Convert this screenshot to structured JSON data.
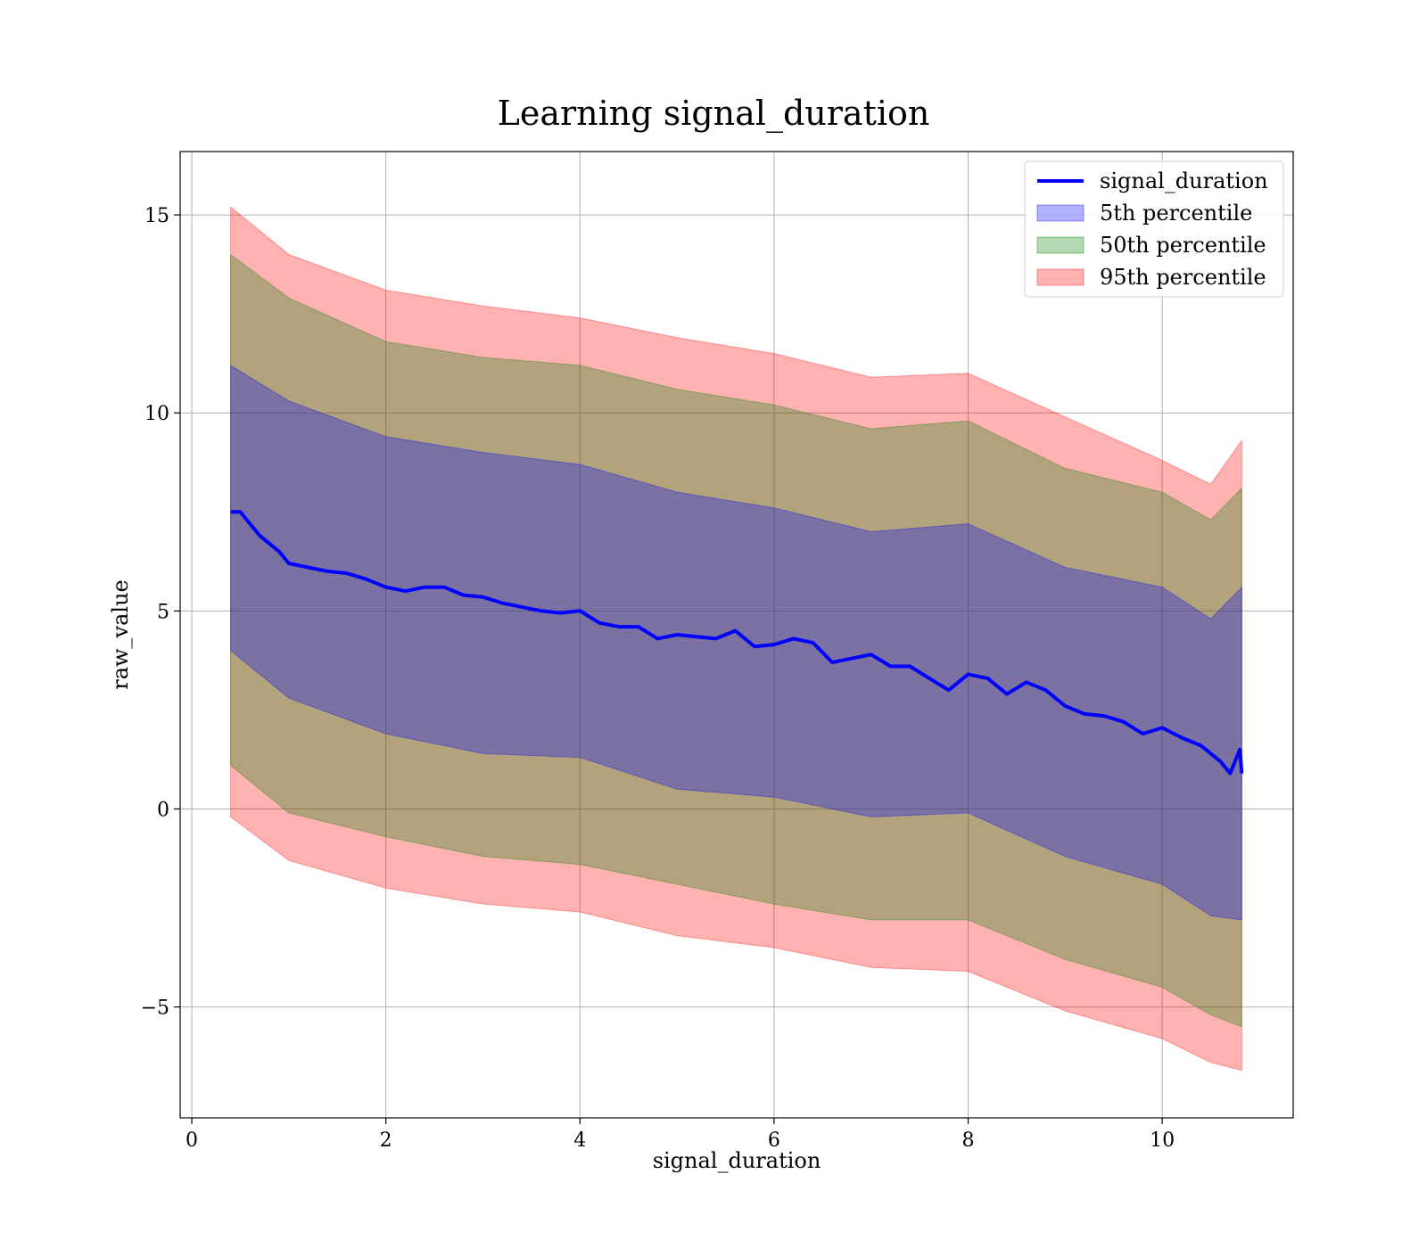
{
  "chart_data": {
    "type": "line",
    "title": "Learning signal_duration",
    "xlabel": "signal_duration",
    "ylabel": "raw_value",
    "xlim": [
      -0.12,
      11.35
    ],
    "ylim": [
      -7.8,
      16.6
    ],
    "x_ticks": [
      {
        "value": 0,
        "label": "0"
      },
      {
        "value": 2,
        "label": "2"
      },
      {
        "value": 4,
        "label": "4"
      },
      {
        "value": 6,
        "label": "6"
      },
      {
        "value": 8,
        "label": "8"
      },
      {
        "value": 10,
        "label": "10"
      }
    ],
    "y_ticks": [
      {
        "value": -5,
        "label": "−5"
      },
      {
        "value": 0,
        "label": "0"
      },
      {
        "value": 5,
        "label": "5"
      },
      {
        "value": 10,
        "label": "10"
      },
      {
        "value": 15,
        "label": "15"
      }
    ],
    "grid": true,
    "legend_position": "top-right",
    "line": {
      "name": "signal_duration",
      "color": "#0000ff",
      "points": [
        [
          0.4,
          7.5
        ],
        [
          0.5,
          7.5
        ],
        [
          0.6,
          7.2
        ],
        [
          0.7,
          6.9
        ],
        [
          0.8,
          6.7
        ],
        [
          0.9,
          6.5
        ],
        [
          1.0,
          6.2
        ],
        [
          1.2,
          6.1
        ],
        [
          1.4,
          6.0
        ],
        [
          1.6,
          5.95
        ],
        [
          1.8,
          5.8
        ],
        [
          2.0,
          5.6
        ],
        [
          2.2,
          5.5
        ],
        [
          2.4,
          5.6
        ],
        [
          2.6,
          5.6
        ],
        [
          2.8,
          5.4
        ],
        [
          3.0,
          5.35
        ],
        [
          3.2,
          5.2
        ],
        [
          3.4,
          5.1
        ],
        [
          3.6,
          5.0
        ],
        [
          3.8,
          4.95
        ],
        [
          4.0,
          5.0
        ],
        [
          4.2,
          4.7
        ],
        [
          4.4,
          4.6
        ],
        [
          4.6,
          4.6
        ],
        [
          4.8,
          4.3
        ],
        [
          5.0,
          4.4
        ],
        [
          5.2,
          4.35
        ],
        [
          5.4,
          4.3
        ],
        [
          5.6,
          4.5
        ],
        [
          5.8,
          4.1
        ],
        [
          6.0,
          4.15
        ],
        [
          6.2,
          4.3
        ],
        [
          6.4,
          4.2
        ],
        [
          6.6,
          3.7
        ],
        [
          6.8,
          3.8
        ],
        [
          7.0,
          3.9
        ],
        [
          7.2,
          3.6
        ],
        [
          7.4,
          3.6
        ],
        [
          7.6,
          3.3
        ],
        [
          7.8,
          3.0
        ],
        [
          8.0,
          3.4
        ],
        [
          8.2,
          3.3
        ],
        [
          8.4,
          2.9
        ],
        [
          8.6,
          3.2
        ],
        [
          8.8,
          3.0
        ],
        [
          9.0,
          2.6
        ],
        [
          9.2,
          2.4
        ],
        [
          9.4,
          2.35
        ],
        [
          9.6,
          2.2
        ],
        [
          9.8,
          1.9
        ],
        [
          10.0,
          2.05
        ],
        [
          10.2,
          1.8
        ],
        [
          10.4,
          1.6
        ],
        [
          10.6,
          1.2
        ],
        [
          10.7,
          0.9
        ],
        [
          10.8,
          1.5
        ],
        [
          10.82,
          0.9
        ]
      ]
    },
    "bands": [
      {
        "name": "95th percentile",
        "color": "#ff0000",
        "opacity": 0.3,
        "x": [
          0.4,
          1.0,
          2.0,
          3.0,
          4.0,
          5.0,
          6.0,
          7.0,
          8.0,
          9.0,
          10.0,
          10.5,
          10.82
        ],
        "upper": [
          15.2,
          14.0,
          13.1,
          12.7,
          12.4,
          11.9,
          11.5,
          10.9,
          11.0,
          9.9,
          8.8,
          8.2,
          9.3
        ],
        "lower": [
          -0.2,
          -1.3,
          -2.0,
          -2.4,
          -2.6,
          -3.2,
          -3.5,
          -4.0,
          -4.1,
          -5.1,
          -5.8,
          -6.4,
          -6.6
        ]
      },
      {
        "name": "50th percentile",
        "color": "#008000",
        "opacity": 0.3,
        "x": [
          0.4,
          1.0,
          2.0,
          3.0,
          4.0,
          5.0,
          6.0,
          7.0,
          8.0,
          9.0,
          10.0,
          10.5,
          10.82
        ],
        "upper": [
          14.0,
          12.9,
          11.8,
          11.4,
          11.2,
          10.6,
          10.2,
          9.6,
          9.8,
          8.6,
          8.0,
          7.3,
          8.1
        ],
        "lower": [
          1.1,
          -0.1,
          -0.7,
          -1.2,
          -1.4,
          -1.9,
          -2.4,
          -2.8,
          -2.8,
          -3.8,
          -4.5,
          -5.2,
          -5.5
        ]
      },
      {
        "name": "5th percentile",
        "color": "#0000ff",
        "opacity": 0.3,
        "x": [
          0.4,
          1.0,
          2.0,
          3.0,
          4.0,
          5.0,
          6.0,
          7.0,
          8.0,
          9.0,
          10.0,
          10.5,
          10.82
        ],
        "upper": [
          11.2,
          10.3,
          9.4,
          9.0,
          8.7,
          8.0,
          7.6,
          7.0,
          7.2,
          6.1,
          5.6,
          4.8,
          5.6
        ],
        "lower": [
          4.0,
          2.8,
          1.9,
          1.4,
          1.3,
          0.5,
          0.3,
          -0.2,
          -0.1,
          -1.2,
          -1.9,
          -2.7,
          -2.8
        ]
      }
    ],
    "legend": [
      {
        "label": "signal_duration",
        "kind": "line",
        "color": "#0000ff"
      },
      {
        "label": "5th percentile",
        "kind": "patch",
        "color": "#0000ff"
      },
      {
        "label": "50th percentile",
        "kind": "patch",
        "color": "#008000"
      },
      {
        "label": "95th percentile",
        "kind": "patch",
        "color": "#ff0000"
      }
    ]
  }
}
